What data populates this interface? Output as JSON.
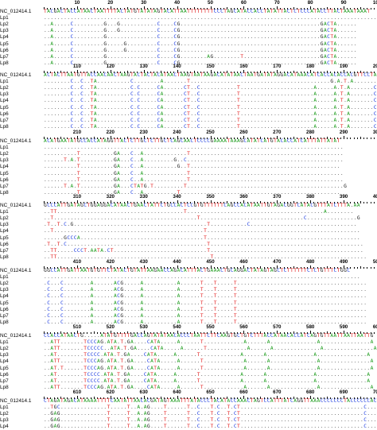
{
  "colors": {
    "A": "#1a9a1a",
    "C": "#1a3adf",
    "G": "#111111",
    "T": "#e11a1a",
    "dot": "#555555"
  },
  "blocks": [
    {
      "ticks": [
        10,
        20,
        30,
        40,
        50,
        60,
        70,
        80,
        90,
        100
      ],
      "rows": [
        {
          "name": "NC_012414.1",
          "seq": "TACGACTACCATAACTAATTTTACTATGTATATAGTACATTAATTTTTTTTCCCTAGCATACCACCTATATTACTCTCCCATACCTTACTAAATAAAT"
        },
        {
          "name": "Lp1",
          "seq": ".....................................................................................................G.....A"
        },
        {
          "name": "Lp2",
          "seq": "..A.....C.........G...G...........C....CG..........................................GACTA......"
        },
        {
          "name": "Lp3",
          "seq": "..A.....C.........G...G...........C....CG..........................................GACTA......"
        },
        {
          "name": "Lp4",
          "seq": "..A.....C.........G...............C....CG..........................................GACTA......"
        },
        {
          "name": "Lp5",
          "seq": "..A.....C.........G.....G.........C....CG..........................................GACTA......"
        },
        {
          "name": "Lp6",
          "seq": "..A.....C.........G.....G.........C....CG..........................................GACTA......"
        },
        {
          "name": "Lp7",
          "seq": "..A.....C.........G...............C....CG........AG........T.......................GACTA......"
        },
        {
          "name": "Lp8",
          "seq": "..A.....C.........G...............C....CG..........................................GACTA......"
        }
      ]
    },
    {
      "ticks": [
        110,
        120,
        130,
        140,
        150,
        160,
        170,
        180,
        190,
        200
      ],
      "rows": [
        {
          "name": "NC_012414.1",
          "seq": "ACTACTTAATGTTACCAACAACTAAGTACTACTACATAACTAAGTAATAAGACATATAACTAATGATATAGGACATAAACATCACCACACCACGTTCCTAA"
        },
        {
          "name": "Lp1",
          "seq": "........C..C..TA..........C........A.......T..........................................G.A.T.A........"
        },
        {
          "name": "Lp2",
          "seq": "........C..C..TA..........C.C.....CA......CT..C...........T......................A.....A.T.A.......C."
        },
        {
          "name": "Lp3",
          "seq": "........C..C..TA..........C.C.....CA......CT..C...........T......................A.....A.T.A.......C."
        },
        {
          "name": "Lp4",
          "seq": "........C..C..TA..........C.C.....CA......CT..C...........T......................A.....A.T.A.......C."
        },
        {
          "name": "Lp5",
          "seq": "........C..C..TA..........C.C.....CA......CT..C...........T......................A.....A.T.A.......C."
        },
        {
          "name": "Lp6",
          "seq": "........C..C..TA..........C.C.....CA......CT..C...........T......................A.....A.T.A.......C."
        },
        {
          "name": "Lp7",
          "seq": "........C..C..TA..........C.C.....CA......CT..C...........T......................A.....A.T.A.......C."
        },
        {
          "name": "Lp8",
          "seq": "........C..C..TA..........C.C.....CA......CT..C...........T......................A.....A.T.A.......C."
        }
      ]
    },
    {
      "ticks": [
        210,
        220,
        230,
        240,
        250,
        260,
        270,
        280,
        290,
        300
      ],
      "rows": [
        {
          "name": "NC_012414.1",
          "seq": "ACATGAATATGCCACCATAGGTTACTCTTGCTCTTGCTCAGCAACTCCCCGAAAATAAAGCATATCATGTACACCATCATTTATTATAT"
        },
        {
          "name": "Lp1",
          "seq": ".........................................................................................."
        },
        {
          "name": "Lp2",
          "seq": "..........T..........GA...C..A.............T.............................................."
        },
        {
          "name": "Lp3",
          "seq": "......T.A.T..........GA...C..A.........G..C..............................................."
        },
        {
          "name": "Lp4",
          "seq": "..........T..........GA...C..A..........G..T............................................."
        },
        {
          "name": "Lp5",
          "seq": "..........T..........GA...C..A.............T.............................................."
        },
        {
          "name": "Lp6",
          "seq": "..........T..........GA...C..A.............T.............................................."
        },
        {
          "name": "Lp7",
          "seq": "......T.A.T..........GA...CTATG.T.........T...............................................G"
        },
        {
          "name": "Lp8",
          "seq": "..........T..........GA...C..A..........T................................................"
        }
      ]
    },
    {
      "ticks": [
        310,
        320,
        330,
        340,
        350,
        360,
        370,
        380,
        390,
        400
      ],
      "rows": [
        {
          "name": "NC_012414.1",
          "seq": "GCCCATTGATAGCTGGAGGACATAACTGAACTATTCTGCCACTCCGTGTTTTTTCAGCCACATAATTGTAGACGGTCATACGTTTATCTTTA.AA"
        },
        {
          "name": "Lp1",
          "seq": "..TT......................................T.........................................A........"
        },
        {
          "name": "Lp2",
          "seq": "..T...........................................T...............................C...............G"
        },
        {
          "name": "Lp3",
          "seq": ".T..T.C.G........................................T...........C................................"
        },
        {
          "name": "Lp4",
          "seq": "..T.............................................T.............................................."
        },
        {
          "name": "Lp5",
          "seq": "......GCCCA.....................................T.............................................."
        },
        {
          "name": "Lp6",
          "seq": ".T..T.C..........................................T.............................................."
        },
        {
          "name": "Lp7",
          "seq": "..TT.....CCCT.AATA.CT............................T.............................................."
        },
        {
          "name": "Lp8",
          "seq": "..TT..............................................T.............................................."
        }
      ]
    },
    {
      "ticks": [
        410,
        420,
        430,
        440,
        450,
        460,
        470,
        480,
        490,
        500
      ],
      "rows": [
        {
          "name": "NC_012414.1",
          "seq": "GGCCATTGATTAATGTGTTCTATACTGTATTAAGAACCAGACATTTACTGAAACTGCAGGACTATAGTAGCTCTTTTTTCTCTGTTTCTGGC"
        },
        {
          "name": "Lp1",
          "seq": "..............................................................................................."
        },
        {
          "name": "Lp2",
          "seq": ".C...C........A......ACG.....A..........A......T...T.....T......................................."
        },
        {
          "name": "Lp3",
          "seq": ".C...C........A......ACG.....A..........A......T...T.....T......................................."
        },
        {
          "name": "Lp4",
          "seq": ".C...C........A......ACG.....A..........A......T...T.....T......................................."
        },
        {
          "name": "Lp5",
          "seq": ".C...C........A......ACG.....A..........A......T...T.....T......................................."
        },
        {
          "name": "Lp6",
          "seq": ".C...C........A......ACG.....A..........A......T...T.....T......................................."
        },
        {
          "name": "Lp7",
          "seq": ".C...C........A......ACG.....A..........A......T...T.....T......................................."
        },
        {
          "name": "Lp8",
          "seq": ".C...C........A......ACG.....A..........A......T...T.....T......................................."
        }
      ]
    },
    {
      "ticks": [
        510,
        520,
        530,
        540,
        550,
        560,
        570,
        580,
        590,
        600
      ],
      "rows": [
        {
          "name": "NC_012414.1",
          "seq": "CCACCATAACTG.....ATATGTTTTGACCAGTATATAACACCCTAATTCTTCAAGTGCTGTCTTTACCATAACACCATCAGTGTTAATTAATTAATTG"
        },
        {
          "name": "Lp1",
          "seq": "..ATT.......TCCCAG.ATA.T.GA....CATA.....A......T............A......A..............A...............A"
        },
        {
          "name": "Lp2",
          "seq": "..ATT.......TCCCCC..ATA.T.GA....CATA.....A......T............A......A..............A...............A"
        },
        {
          "name": "Lp3",
          "seq": "..AT........TCCCC.ATA.T.GA....CATA.....A......T............A......A..............A...............A"
        },
        {
          "name": "Lp4",
          "seq": "..ATT.......TCCCAG.ATA.T.GA....CATA.....A......T............A......A..............A...............A"
        },
        {
          "name": "Lp5",
          "seq": "..AT.T......TCCCAG.ATA.T.GA....CATA.....A......T............A......A..............A...............A"
        },
        {
          "name": "Lp6",
          "seq": "..AT........TCCCC.ATA.T.GA....CATA.....A......T............A......A..............A...............A"
        },
        {
          "name": "Lp7",
          "seq": "..AT........TCCCC.ATA.T.GA....CATA.....A......T............A......A..............A...............A"
        },
        {
          "name": "Lp8",
          "seq": "..ATT.......TCCCAG.ATA.T.GA....CATA.....A......T............A......A..............A...............A"
        }
      ]
    },
    {
      "ticks": [
        610,
        620,
        630,
        640,
        650,
        660,
        670,
        680,
        690,
        700
      ],
      "rows": [
        {
          "name": "NC_012414.1",
          "seq": "CTAGATAGACATAAAATTTTCAATATTAACACGATAGTAAATTTATACCCTACATACCAAACTAGTCCATTTATCAGGTTAAACCCCCCCTACCCCCCAC"
        },
        {
          "name": "Lp1",
          "seq": "..TGC..............T.....T..A.AG....T......T..C...T.C..T.CT.....................................C..."
        },
        {
          "name": "Lp2",
          "seq": "..GAG..............T.....T..A.AG....T......T..C...T.C..T.CT.....................................C..."
        },
        {
          "name": "Lp3",
          "seq": "..GAG..............T.....T..A.AG....T......T..C...T.C..T.CT.....................................C..."
        },
        {
          "name": "Lp4",
          "seq": "..GAG..............T.....T..A.AG....T......T..C...T.C..T.CT.....................................C..."
        }
      ]
    }
  ]
}
